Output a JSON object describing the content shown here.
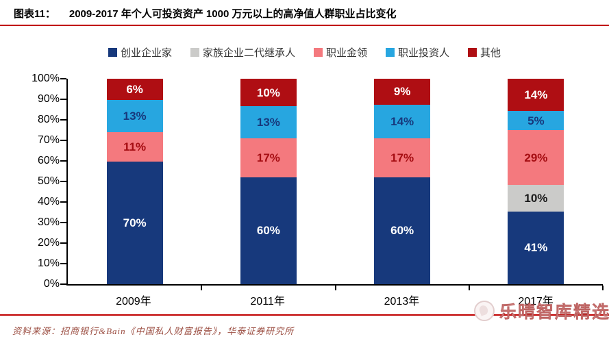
{
  "header": {
    "figure_label": "图表11：",
    "title": "2009-2017 年个人可投资资产 1000 万元以上的高净值人群职业占比变化"
  },
  "chart_data": {
    "type": "bar",
    "stacked": true,
    "title": "2009-2017 年个人可投资资产 1000 万元以上的高净值人群职业占比变化",
    "categories": [
      "2009年",
      "2011年",
      "2013年",
      "2017年"
    ],
    "series": [
      {
        "name": "创业企业家",
        "color": "#17397C",
        "label_color": "#FFFFFF",
        "values": [
          70,
          60,
          60,
          41
        ]
      },
      {
        "name": "家族企业二代继承人",
        "color": "#CBCBC9",
        "label_color": "#1A1A1A",
        "values": [
          0,
          0,
          0,
          10
        ]
      },
      {
        "name": "职业金领",
        "color": "#F4797E",
        "label_color": "#A50D12",
        "values": [
          11,
          17,
          17,
          29
        ]
      },
      {
        "name": "职业投资人",
        "color": "#27A6E0",
        "label_color": "#17397C",
        "values": [
          13,
          13,
          14,
          5
        ]
      },
      {
        "name": "其他",
        "color": "#AF0E13",
        "label_color": "#FFFFFF",
        "values": [
          6,
          10,
          9,
          14
        ]
      }
    ],
    "value_suffix": "%",
    "y_axis": {
      "min": 0,
      "max": 100,
      "step": 10,
      "tick_labels": [
        "0%",
        "10%",
        "20%",
        "30%",
        "40%",
        "50%",
        "60%",
        "70%",
        "80%",
        "90%",
        "100%"
      ]
    },
    "legend_position": "top",
    "grid": false
  },
  "footer": {
    "source": "资料来源：招商银行&Bain《中国私人财富报告》，华泰证券研究所",
    "watermark": "乐晴智库精选"
  },
  "style": {
    "accent_red": "#C00000",
    "source_color": "#9C4F43",
    "watermark_color": "#D58F8D"
  }
}
